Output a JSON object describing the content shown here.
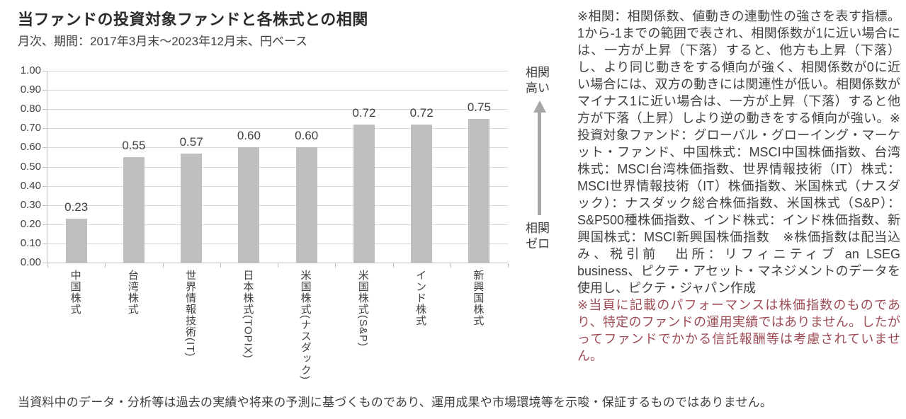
{
  "header": {
    "title": "当ファンドの投資対象ファンドと各株式との相関",
    "subtitle": "月次、期間：2017年3月末～2023年12月末、円ベース"
  },
  "chart_data": {
    "type": "bar",
    "categories": [
      "中国株式",
      "台湾株式",
      "世界情報技術(IT)",
      "日本株式(TOPIX)",
      "米国株式(ナスダック)",
      "米国株式(S&P)",
      "インド株式",
      "新興国株式"
    ],
    "values": [
      0.23,
      0.55,
      0.57,
      0.6,
      0.6,
      0.72,
      0.72,
      0.75
    ],
    "value_labels": [
      "0.23",
      "0.55",
      "0.57",
      "0.60",
      "0.60",
      "0.72",
      "0.72",
      "0.75"
    ],
    "title": "当ファンドの投資対象ファンドと各株式との相関",
    "xlabel": "",
    "ylabel": "",
    "ylim": [
      0,
      1.0
    ],
    "yticks": [
      "1.00",
      "0.90",
      "0.80",
      "0.70",
      "0.60",
      "0.50",
      "0.40",
      "0.30",
      "0.20",
      "0.10",
      "0.00"
    ],
    "grid": true,
    "legend": false,
    "bar_color": "#bfbfbf",
    "gridline_color": "#d9d9d9",
    "axis_color": "#bfbfbf",
    "label_color": "#404040"
  },
  "axis_annotation": {
    "high_label": "相関高い",
    "zero_label": "相関ゼロ",
    "arrow_color": "#a6a6a6"
  },
  "notes": {
    "black_text": "※相関：相関係数、値動きの連動性の強さを表す指標。1から-1までの範囲で表され、相関係数が1に近い場合には、一方が上昇（下落）すると、他方も上昇（下落）し、より同じ動きをする傾向が強く、相関係数が0に近い場合には、双方の動きには関連性が低い。相関係数がマイナス1に近い場合は、一方が上昇（下落）すると他方が下落（上昇）しより逆の動きをする傾向が強い。※投資対象ファンド：グローバル・グローイング・マーケット・ファンド、中国株式：MSCI中国株価指数、台湾株式：MSCI台湾株価指数、世界情報技術（IT）株式：MSCI世界情報技術（IT）株価指数、米国株式（ナスダック）：ナスダック総合株価指数、米国株式（S&P）：S&P500種株価指数、インド株式：インド株価指数、新興国株式：MSCI新興国株価指数　※株価指数は配当込み、税引前　出所：リフィニティブ an LSEG business、ピクテ・アセット・マネジメントのデータを使用し、ピクテ・ジャパン作成",
    "red_text": "※当頁に記載のパフォーマンスは株価指数のものであり、特定のファンドの運用実績ではありません。したがってファンドでかかる信託報酬等は考慮されていません。",
    "red_color": "#9e4c55"
  },
  "footer": {
    "text": "当資料中のデータ・分析等は過去の実績や将来の予測に基づくものであり、運用成果や市場環境等を示唆・保証するものではありません。"
  }
}
